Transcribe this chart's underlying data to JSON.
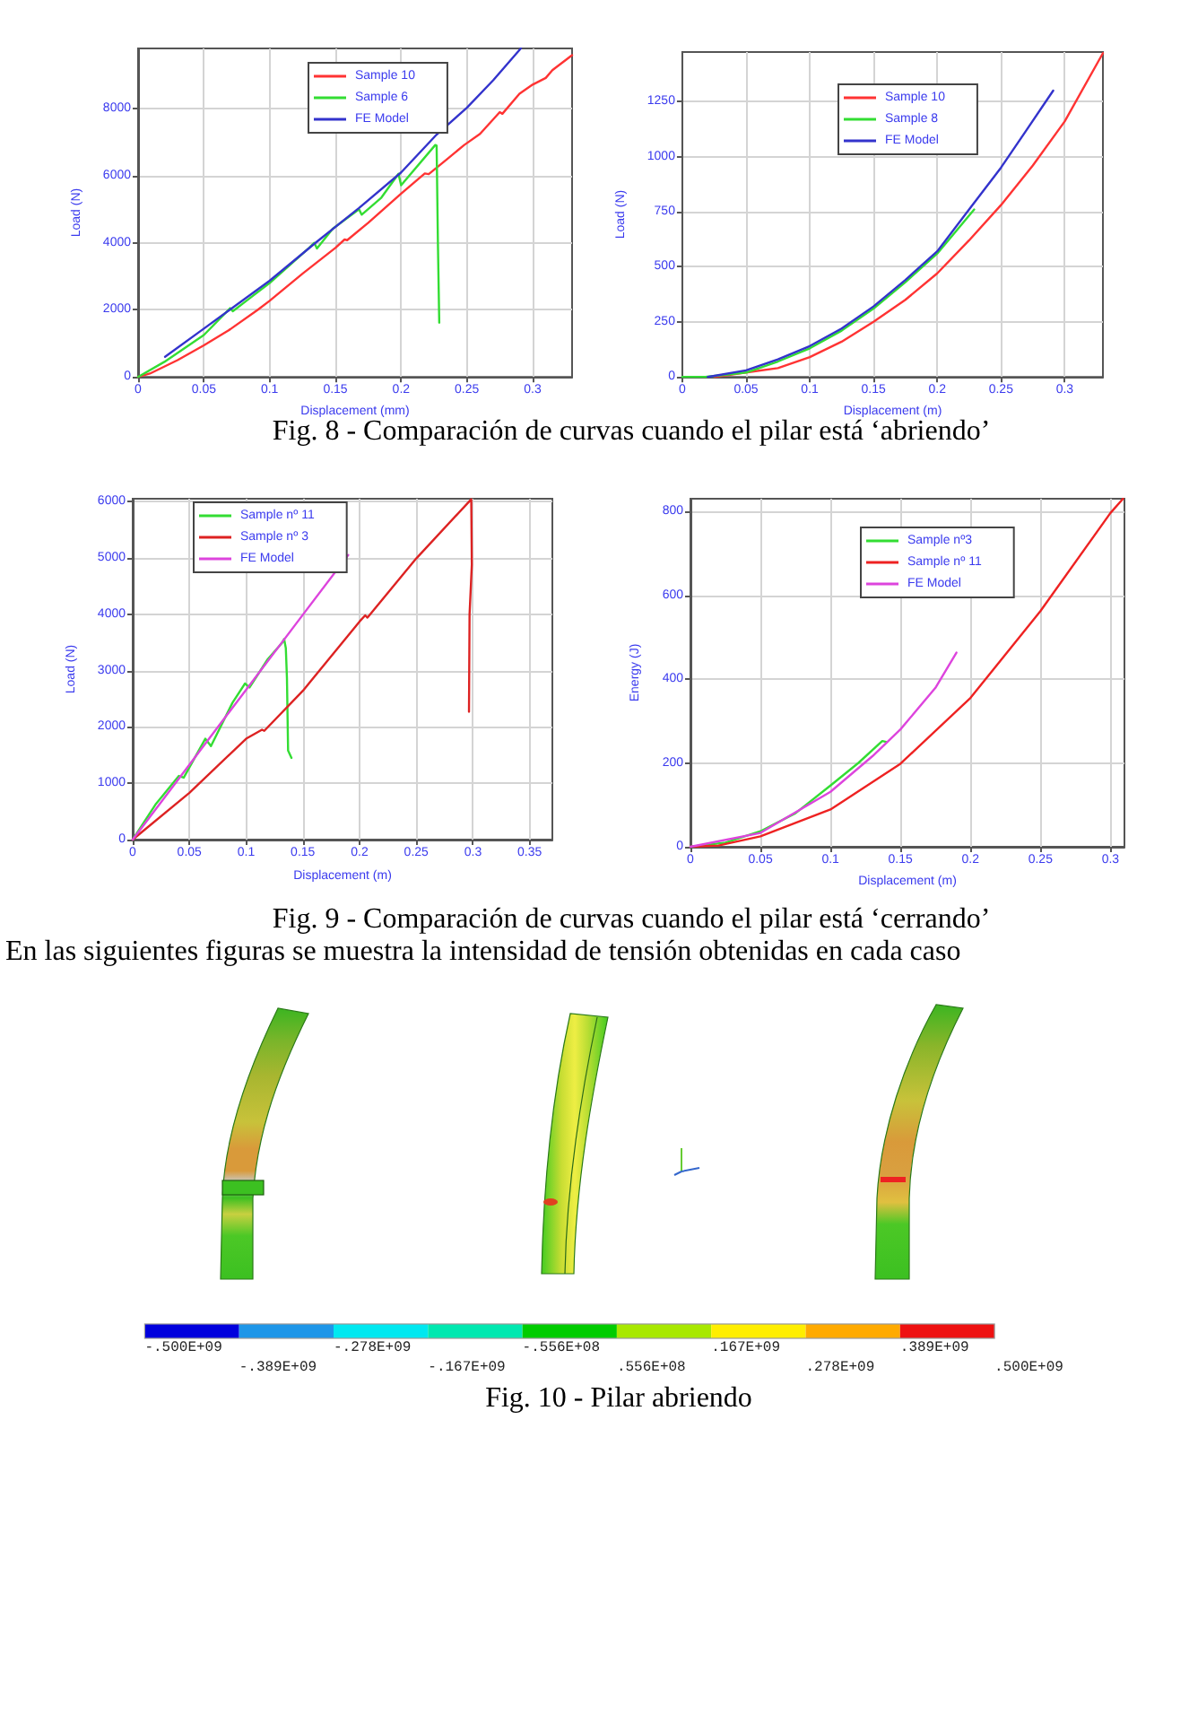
{
  "chart_data": [
    {
      "type": "line",
      "xlabel": "Displacement (mm)",
      "ylabel": "Load (N)",
      "xlim": [
        0,
        0.33
      ],
      "xticks": [
        0,
        0.05,
        0.1,
        0.15,
        0.2,
        0.25,
        0.3
      ],
      "ylim": [
        0,
        9800
      ],
      "yticks": [
        0,
        2000,
        4000,
        6000,
        8000
      ],
      "grid": true,
      "legend": "top",
      "annotations": [
        "Fig. 8 - Comparación de curvas cuando el pilar está ‘abriendo’"
      ],
      "series": [
        {
          "name": "Sample 10",
          "color": "#ff3333",
          "x": [
            0,
            0.009,
            0.03,
            0.05,
            0.07,
            0.0909,
            0.1,
            0.125,
            0.15,
            0.157,
            0.159,
            0.175,
            0.2,
            0.218,
            0.221,
            0.235,
            0.248,
            0.26,
            0.275,
            0.277,
            0.29,
            0.3,
            0.31,
            0.315,
            0.33
          ],
          "values": [
            0,
            100,
            500,
            940,
            1420,
            2000,
            2270,
            3080,
            3850,
            4100,
            4080,
            4600,
            5470,
            6070,
            6050,
            6500,
            6920,
            7250,
            7900,
            7850,
            8450,
            8720,
            8920,
            9150,
            9600
          ]
        },
        {
          "name": "Sample 6",
          "color": "#33dd33",
          "x": [
            0,
            0.02,
            0.05,
            0.07,
            0.072,
            0.085,
            0.1,
            0.13,
            0.134,
            0.136,
            0.148,
            0.168,
            0.17,
            0.185,
            0.198,
            0.2,
            0.226,
            0.227,
            0.228,
            0.229
          ],
          "values": [
            0,
            450,
            1250,
            2050,
            1960,
            2350,
            2800,
            3850,
            4000,
            3830,
            4420,
            5000,
            4840,
            5350,
            6060,
            5720,
            6920,
            6900,
            3950,
            1620
          ]
        },
        {
          "name": "FE Model",
          "color": "#3333cc",
          "x": [
            0.0205,
            0.05,
            0.1,
            0.1355,
            0.168,
            0.2,
            0.227,
            0.25,
            0.27,
            0.291
          ],
          "values": [
            600,
            1440,
            2870,
            4020,
            5040,
            6100,
            7230,
            8030,
            8850,
            9800
          ]
        }
      ]
    },
    {
      "type": "line",
      "xlabel": "Displacement (m)",
      "ylabel": "Load (N)",
      "xlim": [
        0,
        0.33
      ],
      "xticks": [
        0,
        0.05,
        0.1,
        0.15,
        0.2,
        0.25,
        0.3
      ],
      "ylim": [
        0,
        1475
      ],
      "yticks": [
        0,
        250,
        500,
        750,
        1000,
        1250
      ],
      "grid": true,
      "legend": "top",
      "series": [
        {
          "name": "Sample 10",
          "color": "#ff3333",
          "x": [
            0.025,
            0.05,
            0.075,
            0.1,
            0.125,
            0.15,
            0.175,
            0.2,
            0.225,
            0.25,
            0.275,
            0.3,
            0.33
          ],
          "values": [
            0,
            20,
            40,
            90,
            160,
            250,
            350,
            470,
            620,
            780,
            960,
            1160,
            1470
          ]
        },
        {
          "name": "Sample 8",
          "color": "#33dd33",
          "x": [
            0,
            0.018,
            0.05,
            0.075,
            0.1,
            0.125,
            0.15,
            0.175,
            0.2,
            0.229
          ],
          "values": [
            0,
            0,
            20,
            70,
            130,
            210,
            310,
            430,
            560,
            760
          ]
        },
        {
          "name": "FE Model",
          "color": "#3333cc",
          "x": [
            0.02,
            0.05,
            0.075,
            0.1,
            0.125,
            0.15,
            0.175,
            0.2,
            0.225,
            0.25,
            0.27,
            0.291
          ],
          "values": [
            0,
            30,
            80,
            140,
            220,
            320,
            440,
            570,
            760,
            950,
            1120,
            1300
          ]
        }
      ]
    },
    {
      "type": "line",
      "xlabel": "Displacement (m)",
      "ylabel": "Load (N)",
      "xlim": [
        0,
        0.37
      ],
      "xticks": [
        0,
        0.05,
        0.1,
        0.15,
        0.2,
        0.25,
        0.3,
        0.35
      ],
      "ylim": [
        0,
        6050
      ],
      "yticks": [
        0,
        1000,
        2000,
        3000,
        4000,
        5000,
        6000
      ],
      "grid": true,
      "legend": "top left",
      "annotations": [
        "Fig. 9 - Comparación de curvas cuando el pilar está ‘cerrando’"
      ],
      "series": [
        {
          "name": "Sample nº 11",
          "color": "#33dd33",
          "x": [
            0,
            0.02,
            0.0407,
            0.045,
            0.064,
            0.069,
            0.088,
            0.099,
            0.103,
            0.119,
            0.132,
            0.1335,
            0.135,
            0.136,
            0.137,
            0.14
          ],
          "values": [
            0,
            620,
            1130,
            1100,
            1790,
            1660,
            2430,
            2770,
            2700,
            3200,
            3500,
            3560,
            3400,
            2860,
            1580,
            1450
          ]
        },
        {
          "name": "Sample nº 3",
          "color": "#dd2222",
          "x": [
            0,
            0.05,
            0.1,
            0.114,
            0.116,
            0.15,
            0.2,
            0.205,
            0.207,
            0.25,
            0.2985,
            0.299,
            0.297,
            0.2965
          ],
          "values": [
            0,
            830,
            1790,
            1950,
            1930,
            2640,
            3870,
            3980,
            3940,
            4990,
            6040,
            4880,
            4000,
            2270
          ]
        },
        {
          "name": "FE Model",
          "color": "#dd44dd",
          "x": [
            0,
            0.05,
            0.1,
            0.15,
            0.19
          ],
          "values": [
            0,
            1330,
            2660,
            3990,
            5050
          ]
        }
      ]
    },
    {
      "type": "line",
      "xlabel": "Displacement (m)",
      "ylabel": "Energy (J)",
      "xlim": [
        0,
        0.31
      ],
      "xticks": [
        0,
        0.05,
        0.1,
        0.15,
        0.2,
        0.25,
        0.3
      ],
      "ylim": [
        0,
        830
      ],
      "yticks": [
        0,
        200,
        400,
        600,
        800
      ],
      "grid": true,
      "legend": "top",
      "series": [
        {
          "name": "Sample nº3",
          "color": "#33dd33",
          "x": [
            0,
            0.025,
            0.05,
            0.075,
            0.1,
            0.12,
            0.137,
            0.14
          ],
          "values": [
            0,
            10,
            37,
            80,
            146,
            200,
            252,
            250
          ]
        },
        {
          "name": "Sample nº 11",
          "color": "#ee2222",
          "x": [
            0,
            0.02,
            0.05,
            0.1,
            0.15,
            0.2,
            0.25,
            0.3,
            0.309
          ],
          "values": [
            0,
            3,
            25,
            89,
            198,
            355,
            562,
            796,
            830
          ]
        },
        {
          "name": "FE Model",
          "color": "#dd44dd",
          "x": [
            0,
            0.05,
            0.1,
            0.13,
            0.15,
            0.175,
            0.19
          ],
          "values": [
            0,
            33,
            131,
            216,
            280,
            379,
            463
          ]
        }
      ]
    },
    {
      "type": "other",
      "annotations": [
        "En las siguientes figuras se muestra la intensidad de tensión obtenidas en cada caso",
        "-.500E+09",
        "-.389E+09",
        "-.278E+09",
        "-.167E+09",
        "-.556E+08",
        ".556E+08",
        ".167E+09",
        ".278E+09",
        ".389E+09",
        ".500E+09",
        "Fig. 10 - Pilar abriendo"
      ]
    }
  ]
}
